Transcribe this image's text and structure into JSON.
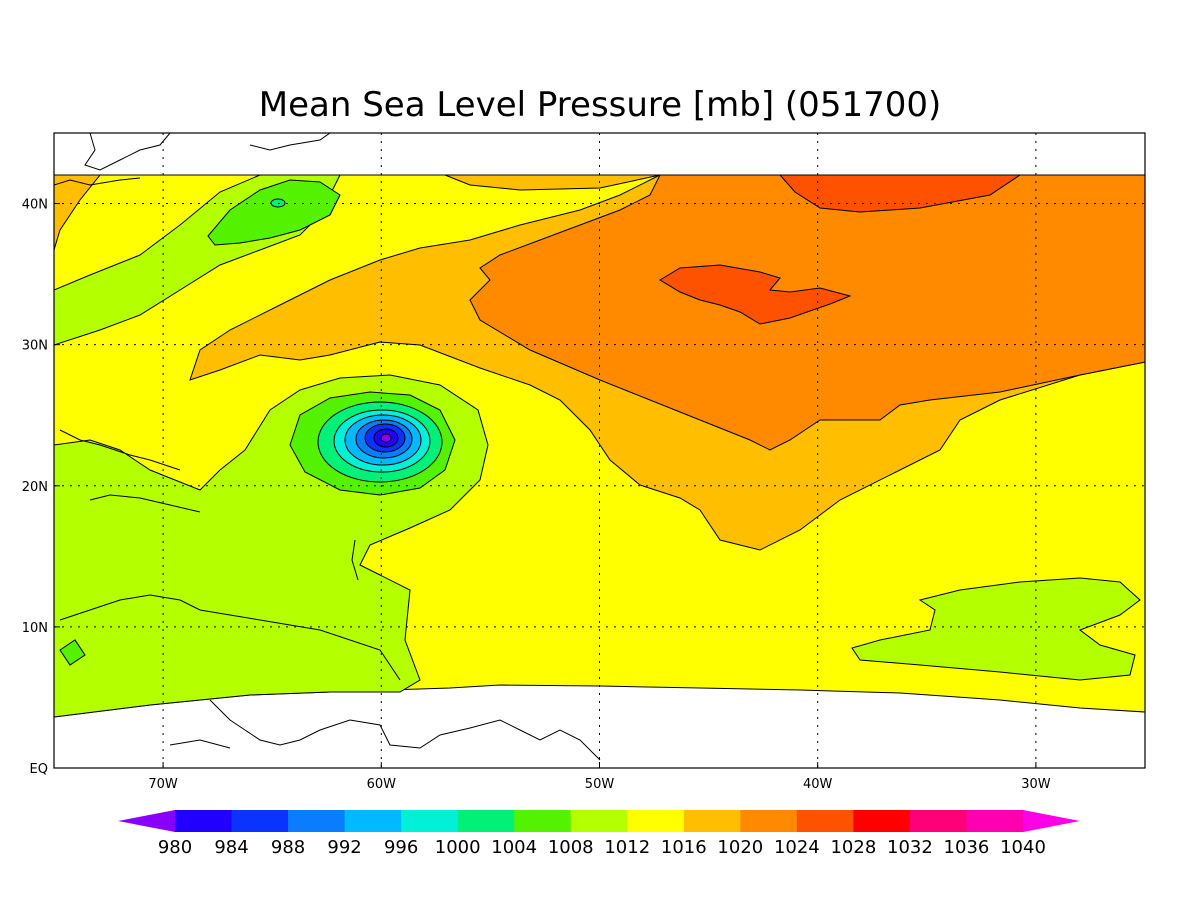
{
  "title": "Mean Sea Level Pressure [mb] (051700)",
  "map": {
    "lon_range": [
      -75,
      -25
    ],
    "lat_range": [
      0,
      45
    ],
    "x_ticks": [
      {
        "lon": -70,
        "label": "70W"
      },
      {
        "lon": -60,
        "label": "60W"
      },
      {
        "lon": -50,
        "label": "50W"
      },
      {
        "lon": -40,
        "label": "40W"
      },
      {
        "lon": -30,
        "label": "30W"
      }
    ],
    "y_ticks": [
      {
        "lat": 0,
        "label": "EQ"
      },
      {
        "lat": 10,
        "label": "10N"
      },
      {
        "lat": 20,
        "label": "20N"
      },
      {
        "lat": 30,
        "label": "30N"
      },
      {
        "lat": 40,
        "label": "40N"
      }
    ],
    "grid": "dotted",
    "cyclone_center": {
      "lon": -60,
      "lat": 23
    }
  },
  "colorbar": {
    "levels": [
      "980",
      "984",
      "988",
      "992",
      "996",
      "1000",
      "1004",
      "1008",
      "1012",
      "1016",
      "1020",
      "1024",
      "1028",
      "1032",
      "1036",
      "1040"
    ],
    "colors": [
      "#8a00ff",
      "#2200ff",
      "#0a33ff",
      "#0a7dff",
      "#00b9ff",
      "#00f0d8",
      "#00f078",
      "#55f200",
      "#b4ff00",
      "#ffff00",
      "#ffbf00",
      "#ff8a00",
      "#ff5200",
      "#ff0000",
      "#ff0078",
      "#ff00b0",
      "#ff00e6"
    ]
  }
}
